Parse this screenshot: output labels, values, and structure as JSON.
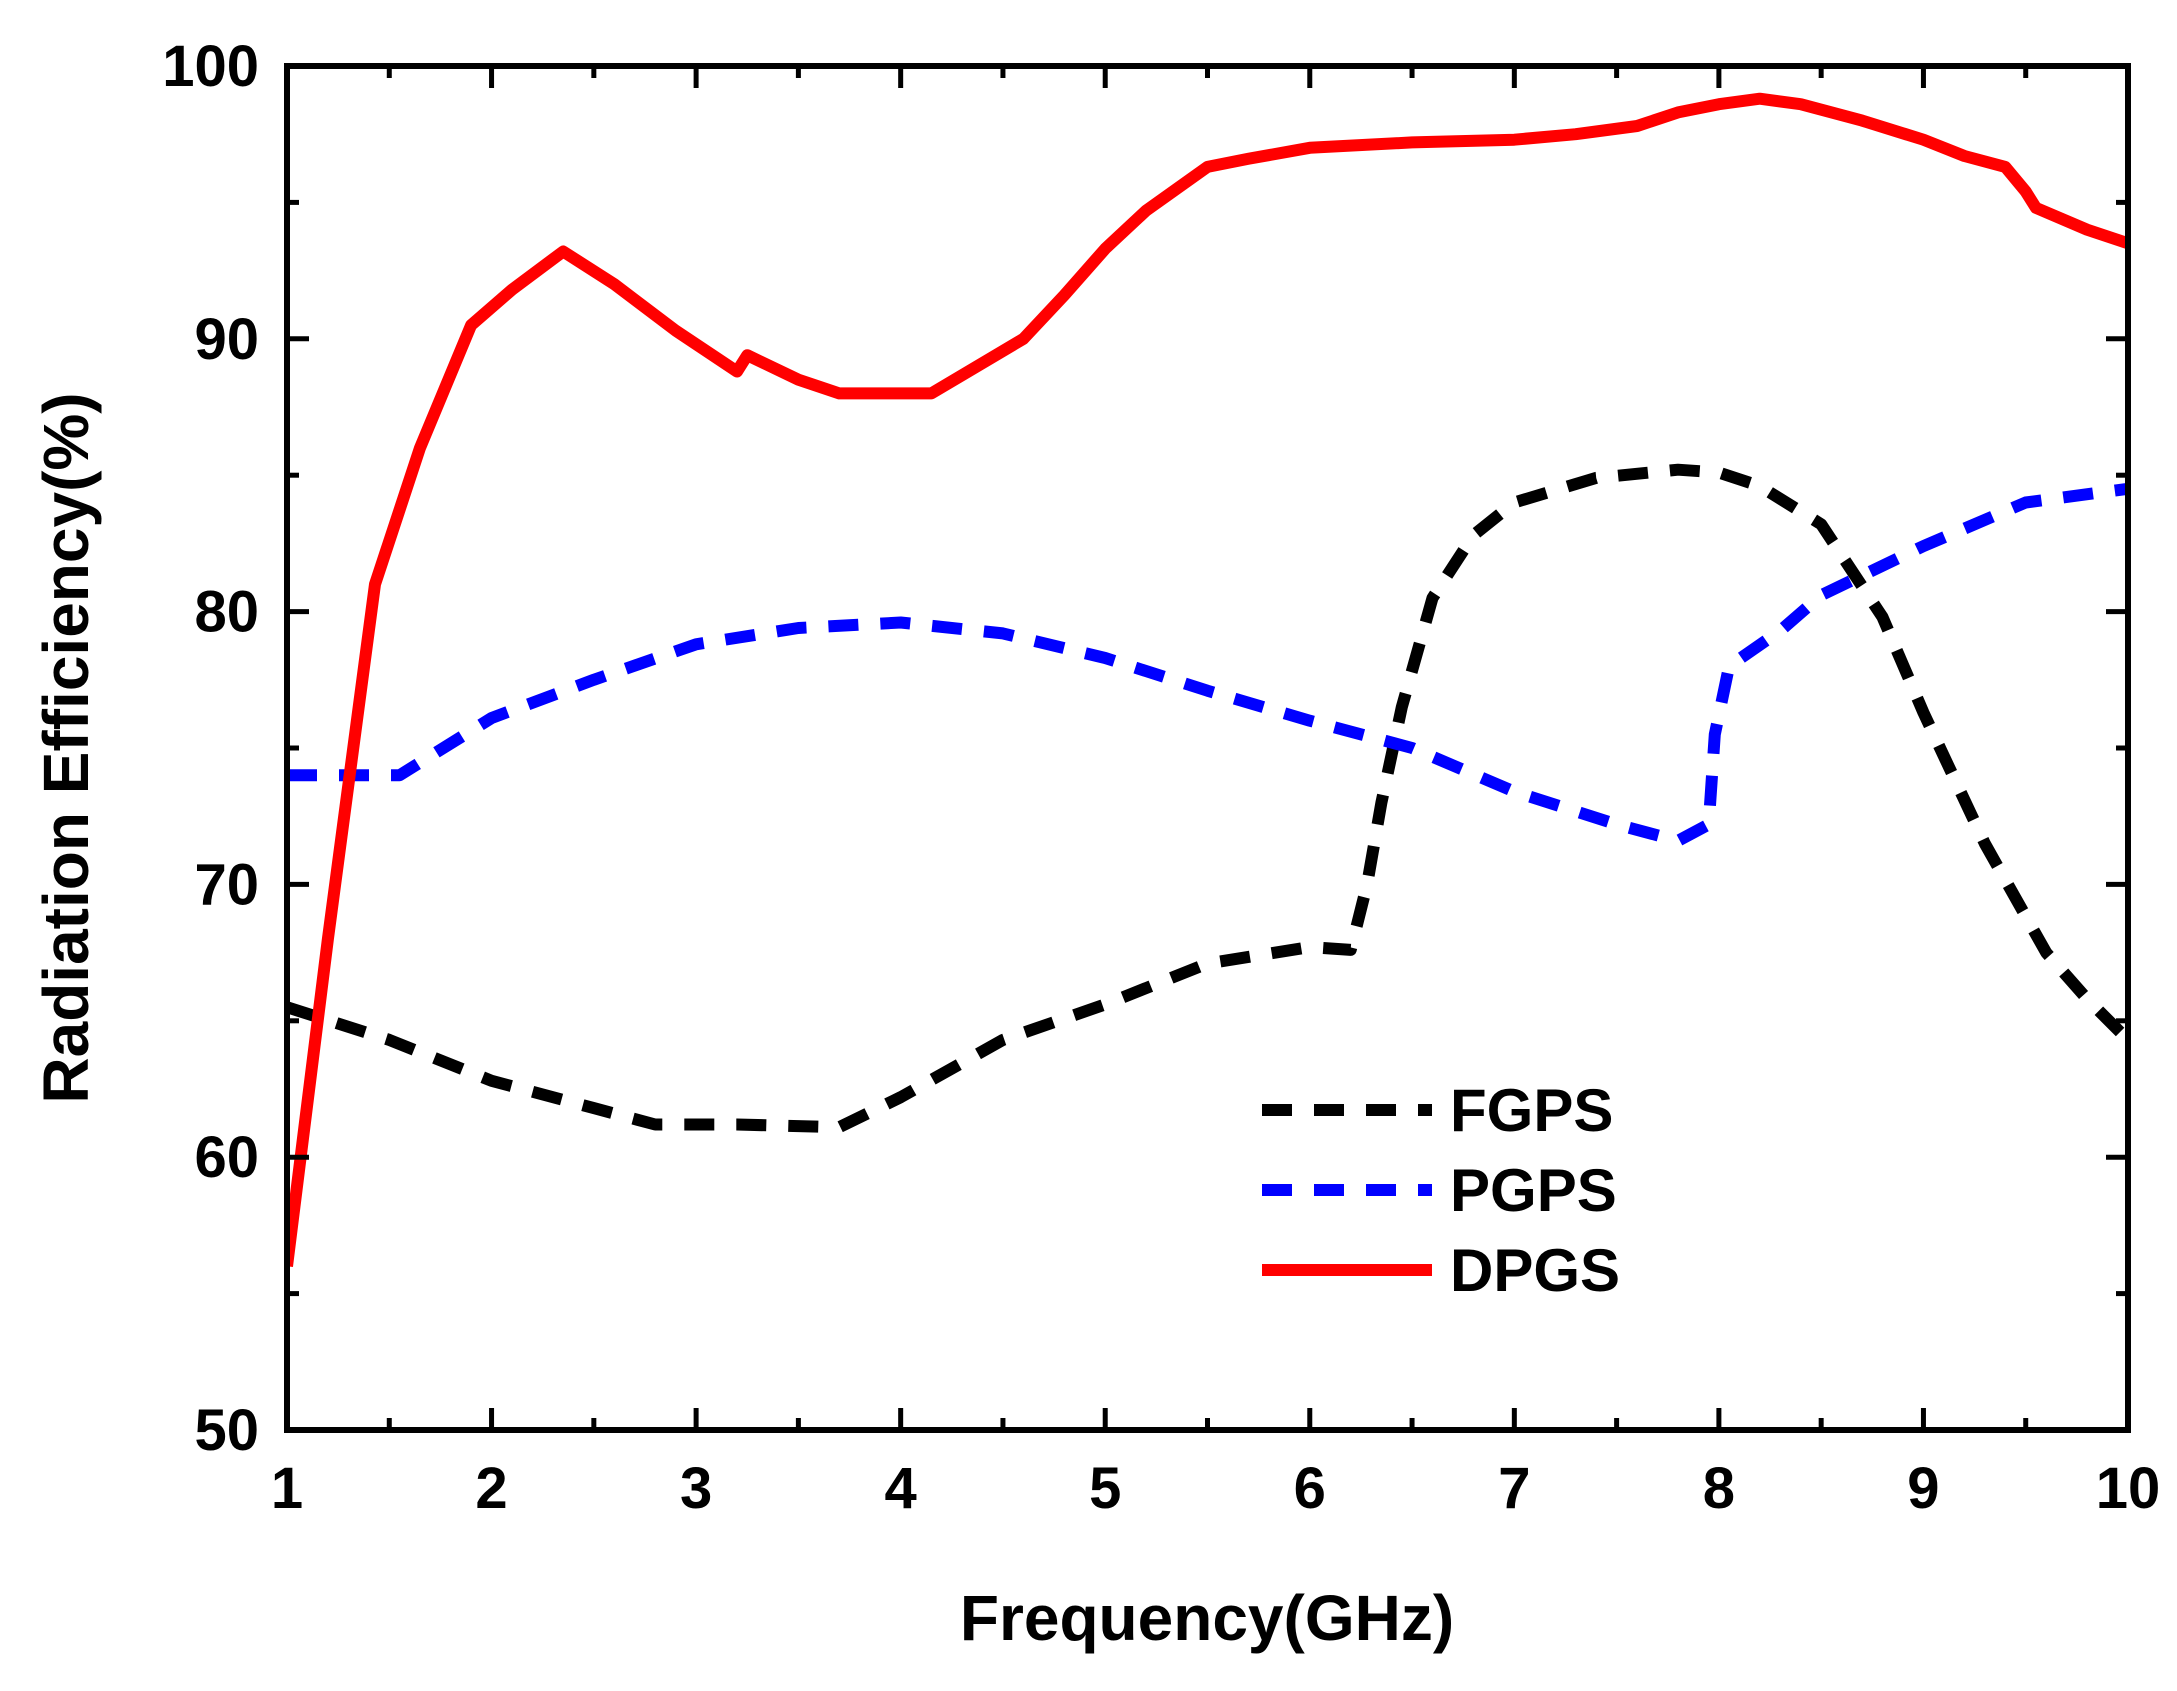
{
  "chart_data": {
    "type": "line",
    "title": "",
    "xlabel": "Frequency(GHz)",
    "ylabel": "Radiation Efficiency(%)",
    "xlim": [
      1,
      10
    ],
    "ylim": [
      50,
      100
    ],
    "xticks": [
      1,
      2,
      3,
      4,
      5,
      6,
      7,
      8,
      9,
      10
    ],
    "yticks": [
      50,
      60,
      70,
      80,
      90,
      100
    ],
    "grid": false,
    "legend_position": "bottom-center",
    "series": [
      {
        "name": "FGPS",
        "color": "#000000",
        "style": "dashed",
        "x": [
          1.0,
          1.5,
          2.0,
          2.5,
          2.8,
          3.2,
          3.7,
          4.0,
          4.5,
          5.0,
          5.5,
          6.0,
          6.2,
          6.28,
          6.35,
          6.45,
          6.6,
          6.8,
          7.0,
          7.4,
          7.8,
          8.0,
          8.2,
          8.5,
          8.8,
          9.0,
          9.3,
          9.6,
          9.8,
          10.0
        ],
        "y": [
          65.5,
          64.3,
          62.8,
          61.8,
          61.2,
          61.2,
          61.1,
          62.2,
          64.3,
          65.6,
          67.1,
          67.7,
          67.6,
          70.0,
          73.0,
          76.5,
          80.5,
          82.8,
          84.0,
          84.9,
          85.2,
          85.1,
          84.6,
          83.2,
          79.8,
          76.3,
          71.5,
          67.5,
          65.8,
          64.3
        ]
      },
      {
        "name": "PGPS",
        "color": "#0000ff",
        "style": "dashed",
        "x": [
          1.0,
          1.3,
          1.55,
          1.7,
          2.0,
          2.5,
          3.0,
          3.5,
          4.0,
          4.5,
          5.0,
          5.5,
          6.0,
          6.5,
          7.0,
          7.5,
          7.8,
          7.95,
          7.98,
          8.05,
          8.3,
          8.5,
          9.0,
          9.5,
          10.0
        ],
        "y": [
          74.0,
          74.0,
          74.0,
          74.7,
          76.1,
          77.5,
          78.8,
          79.4,
          79.6,
          79.2,
          78.3,
          77.1,
          76.0,
          75.0,
          73.4,
          72.2,
          71.6,
          72.2,
          75.5,
          78.0,
          79.3,
          80.6,
          82.4,
          84.0,
          84.5
        ]
      },
      {
        "name": "DPGS",
        "color": "#ff0000",
        "style": "solid",
        "x": [
          1.0,
          1.2,
          1.43,
          1.65,
          1.9,
          2.1,
          2.35,
          2.6,
          2.9,
          3.2,
          3.25,
          3.5,
          3.7,
          4.0,
          4.15,
          4.6,
          4.8,
          5.0,
          5.2,
          5.5,
          5.7,
          6.0,
          6.5,
          7.0,
          7.3,
          7.6,
          7.8,
          8.0,
          8.2,
          8.4,
          8.7,
          9.0,
          9.2,
          9.4,
          9.5,
          9.55,
          9.8,
          10.0
        ],
        "y": [
          56.0,
          68.0,
          81.0,
          86.0,
          90.5,
          91.8,
          93.2,
          92.0,
          90.3,
          88.8,
          89.4,
          88.5,
          88.0,
          88.0,
          88.0,
          90.0,
          91.6,
          93.3,
          94.7,
          96.3,
          96.6,
          97.0,
          97.2,
          97.3,
          97.5,
          97.8,
          98.3,
          98.6,
          98.8,
          98.6,
          98.0,
          97.3,
          96.7,
          96.3,
          95.4,
          94.8,
          94.0,
          93.5
        ]
      }
    ]
  }
}
